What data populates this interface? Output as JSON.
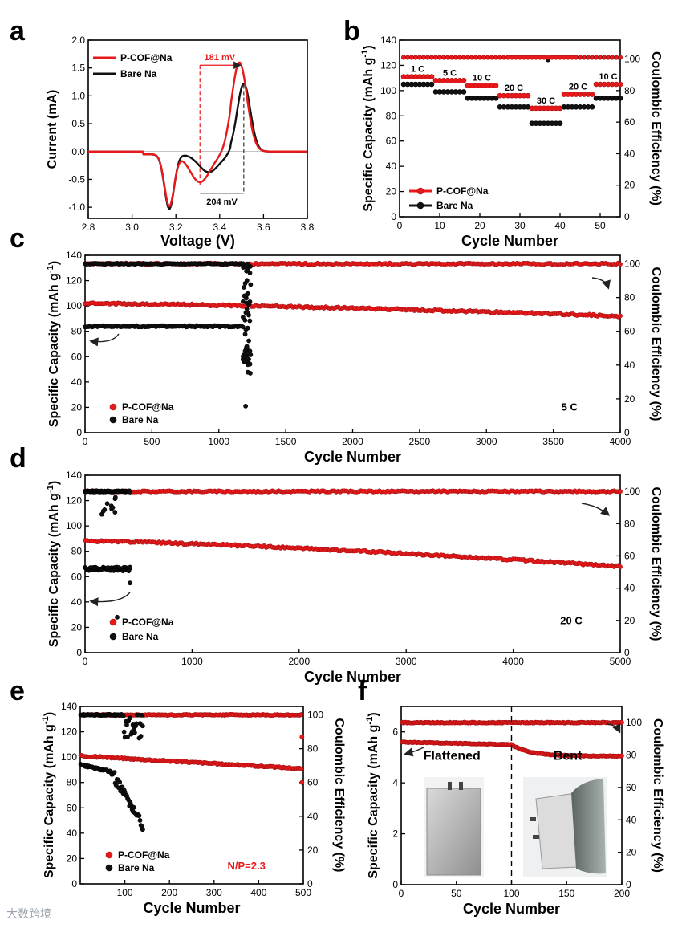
{
  "watermark": "大数跨境",
  "panels": {
    "a": {
      "letter": "a"
    },
    "b": {
      "letter": "b"
    },
    "c": {
      "letter": "c"
    },
    "d": {
      "letter": "d"
    },
    "e": {
      "letter": "e"
    },
    "f": {
      "letter": "f"
    }
  },
  "colors": {
    "red": "#e8191b",
    "black": "#111111",
    "dash": "#e8191b"
  },
  "chart_data": [
    {
      "id": "a",
      "type": "line",
      "xlabel": "Voltage (V)",
      "ylabel": "Current (mA)",
      "xlim": [
        2.8,
        3.8
      ],
      "ylim": [
        -1.2,
        2.0
      ],
      "xticks": [
        2.8,
        3.0,
        3.2,
        3.4,
        3.6,
        3.8
      ],
      "yticks": [
        -1.0,
        -0.5,
        0.0,
        0.5,
        1.0,
        1.5,
        2.0
      ],
      "xtick_labels": [
        "2.8",
        "3.0",
        "3.2",
        "3.4",
        "3.6",
        "3.8"
      ],
      "ytick_labels": [
        "-1.0",
        "-0.5",
        "0.0",
        "0.5",
        "1.0",
        "1.5",
        "2.0"
      ],
      "series": [
        {
          "name": "P-COF@Na",
          "color": "#e8191b",
          "oxidation_peak": {
            "v": 3.49,
            "i": 1.6
          },
          "reduction_peaks": [
            {
              "v": 3.17,
              "i": -0.93
            },
            {
              "v": 3.31,
              "i": -0.5
            }
          ]
        },
        {
          "name": "Bare Na",
          "color": "#111111",
          "oxidation_peak": {
            "v": 3.51,
            "i": 1.22
          },
          "reduction_peaks": [
            {
              "v": 3.17,
              "i": -0.98
            },
            {
              "v": 3.35,
              "i": -0.32
            }
          ]
        }
      ],
      "annotations": {
        "top": "181 mV",
        "bottom": "204 mV",
        "top_range": [
          3.31,
          3.49
        ],
        "bottom_range": [
          3.31,
          3.51
        ]
      }
    },
    {
      "id": "b",
      "type": "scatter",
      "xlabel": "Cycle Number",
      "ylabel": "Specific Capacity (mAh g",
      "ylabel_sup": "-1",
      "ylabel_tail": ")",
      "y2label": "Coulombic Efficiency (%)",
      "xlim": [
        0,
        55
      ],
      "ylim": [
        0,
        140
      ],
      "y2lim": [
        0,
        112
      ],
      "xticks": [
        0,
        10,
        20,
        30,
        40,
        50
      ],
      "yticks": [
        0,
        20,
        40,
        60,
        80,
        100,
        120,
        140
      ],
      "y2ticks": [
        0,
        20,
        40,
        60,
        80,
        100
      ],
      "rates": [
        "1 C",
        "5 C",
        "10 C",
        "20 C",
        "30 C",
        "20 C",
        "10 C"
      ],
      "segments": [
        {
          "rate": "1 C",
          "cycles": [
            1,
            8
          ],
          "p_cof": 111,
          "bare": 105
        },
        {
          "rate": "5 C",
          "cycles": [
            9,
            16
          ],
          "p_cof": 108,
          "bare": 99
        },
        {
          "rate": "10 C",
          "cycles": [
            17,
            24
          ],
          "p_cof": 104,
          "bare": 94
        },
        {
          "rate": "20 C",
          "cycles": [
            25,
            32
          ],
          "p_cof": 96,
          "bare": 87
        },
        {
          "rate": "30 C",
          "cycles": [
            33,
            40
          ],
          "p_cof": 86,
          "bare": 74
        },
        {
          "rate": "20 C",
          "cycles": [
            41,
            48
          ],
          "p_cof": 97,
          "bare": 87
        },
        {
          "rate": "10 C",
          "cycles": [
            49,
            55
          ],
          "p_cof": 105,
          "bare": 94
        }
      ],
      "ce": {
        "p_cof": 101,
        "bare": 101
      },
      "legend": [
        "P-COF@Na",
        "Bare Na"
      ]
    },
    {
      "id": "c",
      "type": "scatter",
      "xlabel": "Cycle Number",
      "ylabel": "Specific Capacity (mAh g",
      "ylabel_sup": "-1",
      "ylabel_tail": ")",
      "y2label": "Coulombic Efficiency (%)",
      "xlim": [
        0,
        4000
      ],
      "ylim": [
        0,
        140
      ],
      "y2lim": [
        0,
        105
      ],
      "xticks": [
        0,
        500,
        1000,
        1500,
        2000,
        2500,
        3000,
        3500,
        4000
      ],
      "yticks": [
        0,
        20,
        40,
        60,
        80,
        100,
        120,
        140
      ],
      "y2ticks": [
        0,
        20,
        40,
        60,
        80,
        100
      ],
      "rate_label": "5 C",
      "legend": [
        "P-COF@Na",
        "Bare Na"
      ],
      "p_cof": {
        "cap_start": 102,
        "cap_end": 92,
        "ce": 100,
        "end_cycle": 4000
      },
      "bare": {
        "cap": 84,
        "ce": 100,
        "fail_cycle": 1180,
        "end_cycle": 1240,
        "min_cap": 21
      }
    },
    {
      "id": "d",
      "type": "scatter",
      "xlabel": "Cycle Number",
      "ylabel": "Specific Capacity (mAh g",
      "ylabel_sup": "-1",
      "ylabel_tail": ")",
      "y2label": "Coulombic Efficiency (%)",
      "xlim": [
        0,
        5000
      ],
      "ylim": [
        0,
        140
      ],
      "y2lim": [
        0,
        110
      ],
      "xticks": [
        0,
        1000,
        2000,
        3000,
        4000,
        5000
      ],
      "yticks": [
        0,
        20,
        40,
        60,
        80,
        100,
        120,
        140
      ],
      "y2ticks": [
        0,
        20,
        40,
        60,
        80,
        100
      ],
      "rate_label": "20 C",
      "legend": [
        "P-COF@Na",
        "Bare Na"
      ],
      "p_cof": {
        "cap_start": 88,
        "cap_end": 68,
        "ce": 100,
        "end_cycle": 5000
      },
      "bare": {
        "cap": 66,
        "ce": 100,
        "end_cycle": 420,
        "min_cap": 28
      }
    },
    {
      "id": "e",
      "type": "scatter",
      "xlabel": "Cycle Number",
      "ylabel": "Specific Capacity (mAh g",
      "ylabel_sup": "-1",
      "ylabel_tail": ")",
      "y2label": "Coulombic Efficiency (%)",
      "xlim": [
        0,
        500
      ],
      "ylim": [
        0,
        140
      ],
      "y2lim": [
        0,
        105
      ],
      "xticks": [
        100,
        200,
        300,
        400,
        500
      ],
      "yticks": [
        0,
        20,
        40,
        60,
        80,
        100,
        120,
        140
      ],
      "y2ticks": [
        0,
        20,
        40,
        60,
        80,
        100
      ],
      "np_label": "N/P=2.3",
      "legend": [
        "P-COF@Na",
        "Bare Na"
      ],
      "p_cof": {
        "cap_start": 101,
        "cap_end": 91,
        "ce": 100,
        "end_cycle": 495
      },
      "bare": {
        "cap_start": 94,
        "ce": 100,
        "end_cycle": 140,
        "min_cap": 43
      }
    },
    {
      "id": "f",
      "type": "scatter",
      "xlabel": "Cycle Number",
      "ylabel": "Specific Capacity (mAh g",
      "ylabel_sup": "-1",
      "ylabel_tail": ")",
      "y2label": "Coulombic Efficiency (%)",
      "xlim": [
        0,
        200
      ],
      "ylim": [
        0,
        7
      ],
      "y2lim": [
        0,
        110
      ],
      "xticks": [
        0,
        50,
        100,
        150,
        200
      ],
      "yticks": [
        0,
        2,
        4,
        6
      ],
      "y2ticks": [
        0,
        20,
        40,
        60,
        80,
        100
      ],
      "labels": [
        "Flattened",
        "Bent"
      ],
      "divider_cycle": 100,
      "capacity": {
        "flat_start": 5.6,
        "flat_end": 5.5,
        "bent_end": 5.05
      },
      "ce": 100
    }
  ]
}
